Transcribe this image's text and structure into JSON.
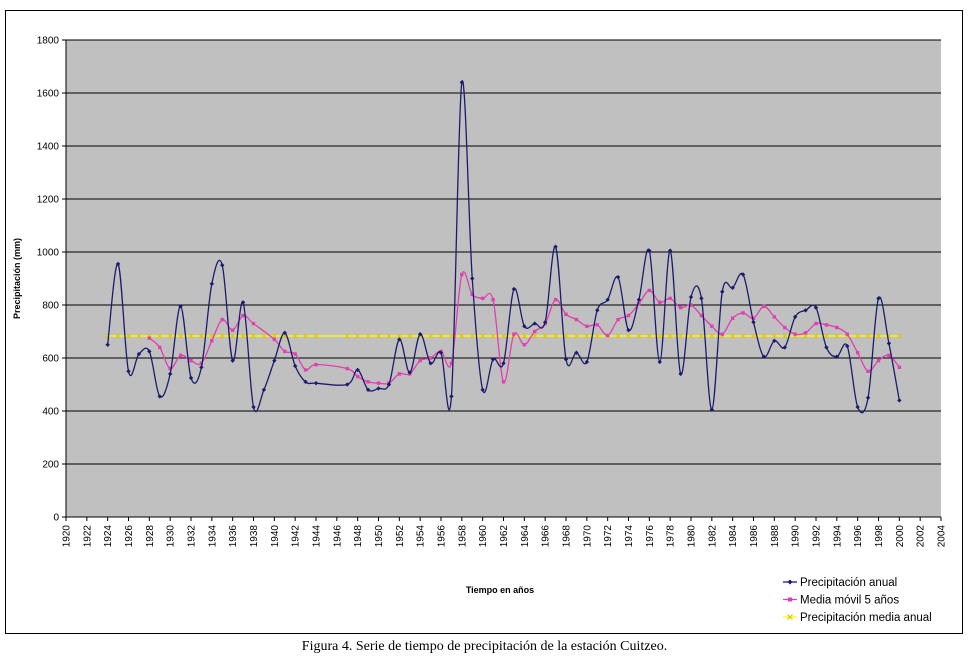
{
  "caption": "Figura 4. Serie de tiempo de precipitación de la estación Cuitzeo.",
  "chart_data": {
    "type": "line",
    "title": "",
    "xlabel": "Tiempo en años",
    "ylabel": "Precipitación (mm)",
    "xlim": [
      1920,
      2004
    ],
    "ylim": [
      0,
      1800
    ],
    "x_ticks": [
      1920,
      1922,
      1924,
      1926,
      1928,
      1930,
      1932,
      1934,
      1936,
      1938,
      1940,
      1942,
      1944,
      1946,
      1948,
      1950,
      1952,
      1954,
      1956,
      1958,
      1960,
      1962,
      1964,
      1966,
      1968,
      1970,
      1972,
      1974,
      1976,
      1978,
      1980,
      1982,
      1984,
      1986,
      1988,
      1990,
      1992,
      1994,
      1996,
      1998,
      2000,
      2002,
      2004
    ],
    "y_ticks": [
      0,
      200,
      400,
      600,
      800,
      1000,
      1200,
      1400,
      1600,
      1800
    ],
    "grid": true,
    "legend_position": "bottom-right",
    "colors": {
      "plot_bg": "#c0c0c0",
      "annual": "#1c1c6e",
      "moving_avg": "#e040b0",
      "mean": "#ffff00"
    },
    "series": [
      {
        "name": "Precipitación anual",
        "x": [
          1924,
          1925,
          1926,
          1927,
          1928,
          1929,
          1930,
          1931,
          1932,
          1933,
          1934,
          1935,
          1936,
          1937,
          1938,
          1939,
          1940,
          1941,
          1942,
          1943,
          1944,
          1947,
          1948,
          1949,
          1950,
          1951,
          1952,
          1953,
          1954,
          1955,
          1956,
          1957,
          1958,
          1959,
          1960,
          1961,
          1962,
          1963,
          1964,
          1965,
          1966,
          1967,
          1968,
          1969,
          1970,
          1971,
          1972,
          1973,
          1974,
          1975,
          1976,
          1977,
          1978,
          1979,
          1980,
          1981,
          1982,
          1983,
          1984,
          1985,
          1986,
          1987,
          1988,
          1989,
          1990,
          1991,
          1992,
          1993,
          1994,
          1995,
          1996,
          1997,
          1998,
          1999,
          2000
        ],
        "values": [
          650,
          955,
          550,
          615,
          625,
          455,
          540,
          795,
          525,
          565,
          880,
          950,
          590,
          810,
          415,
          480,
          590,
          695,
          570,
          510,
          505,
          500,
          555,
          480,
          485,
          500,
          670,
          545,
          690,
          580,
          620,
          455,
          1640,
          900,
          480,
          595,
          580,
          860,
          720,
          730,
          735,
          1020,
          595,
          620,
          585,
          780,
          820,
          905,
          705,
          820,
          1005,
          585,
          1005,
          540,
          830,
          825,
          405,
          850,
          865,
          915,
          735,
          605,
          665,
          640,
          755,
          780,
          790,
          640,
          605,
          645,
          415,
          450,
          825,
          655,
          440
        ]
      },
      {
        "name": "Media móvil 5 años",
        "x": [
          1928,
          1929,
          1930,
          1931,
          1932,
          1933,
          1934,
          1935,
          1936,
          1937,
          1938,
          1940,
          1941,
          1942,
          1943,
          1944,
          1947,
          1948,
          1949,
          1950,
          1951,
          1952,
          1953,
          1954,
          1955,
          1956,
          1957,
          1958,
          1959,
          1960,
          1961,
          1962,
          1963,
          1964,
          1965,
          1966,
          1967,
          1968,
          1969,
          1970,
          1971,
          1972,
          1973,
          1974,
          1975,
          1976,
          1977,
          1978,
          1979,
          1980,
          1981,
          1982,
          1983,
          1984,
          1985,
          1986,
          1987,
          1988,
          1989,
          1990,
          1991,
          1992,
          1993,
          1994,
          1995,
          1996,
          1997,
          1998,
          1999,
          2000
        ],
        "values": [
          675,
          640,
          560,
          610,
          590,
          580,
          665,
          745,
          705,
          760,
          730,
          670,
          625,
          615,
          555,
          575,
          560,
          530,
          510,
          505,
          505,
          540,
          540,
          590,
          600,
          625,
          580,
          915,
          840,
          825,
          820,
          510,
          690,
          650,
          700,
          730,
          820,
          765,
          745,
          720,
          725,
          685,
          745,
          760,
          805,
          855,
          810,
          825,
          790,
          800,
          760,
          720,
          690,
          750,
          770,
          750,
          795,
          755,
          715,
          690,
          695,
          730,
          725,
          715,
          690,
          620,
          550,
          590,
          610,
          565
        ]
      },
      {
        "name": "Precipitación media anual",
        "x": [
          1924,
          1925,
          1926,
          1927,
          1928,
          1929,
          1930,
          1931,
          1932,
          1933,
          1934,
          1935,
          1936,
          1937,
          1938,
          1939,
          1940,
          1941,
          1942,
          1943,
          1944,
          1947,
          1948,
          1949,
          1950,
          1951,
          1952,
          1953,
          1954,
          1955,
          1956,
          1957,
          1958,
          1959,
          1960,
          1961,
          1962,
          1963,
          1964,
          1965,
          1966,
          1967,
          1968,
          1969,
          1970,
          1971,
          1972,
          1973,
          1974,
          1975,
          1976,
          1977,
          1978,
          1979,
          1980,
          1981,
          1982,
          1983,
          1984,
          1985,
          1986,
          1987,
          1988,
          1989,
          1990,
          1991,
          1992,
          1993,
          1994,
          1995,
          1996,
          1997,
          1998,
          1999,
          2000
        ],
        "values": [
          683,
          683,
          683,
          683,
          683,
          683,
          683,
          683,
          683,
          683,
          683,
          683,
          683,
          683,
          683,
          683,
          683,
          683,
          683,
          683,
          683,
          683,
          683,
          683,
          683,
          683,
          683,
          683,
          683,
          683,
          683,
          683,
          683,
          683,
          683,
          683,
          683,
          683,
          683,
          683,
          683,
          683,
          683,
          683,
          683,
          683,
          683,
          683,
          683,
          683,
          683,
          683,
          683,
          683,
          683,
          683,
          683,
          683,
          683,
          683,
          683,
          683,
          683,
          683,
          683,
          683,
          683,
          683,
          683,
          683,
          683,
          683,
          683,
          683,
          683
        ]
      }
    ]
  }
}
